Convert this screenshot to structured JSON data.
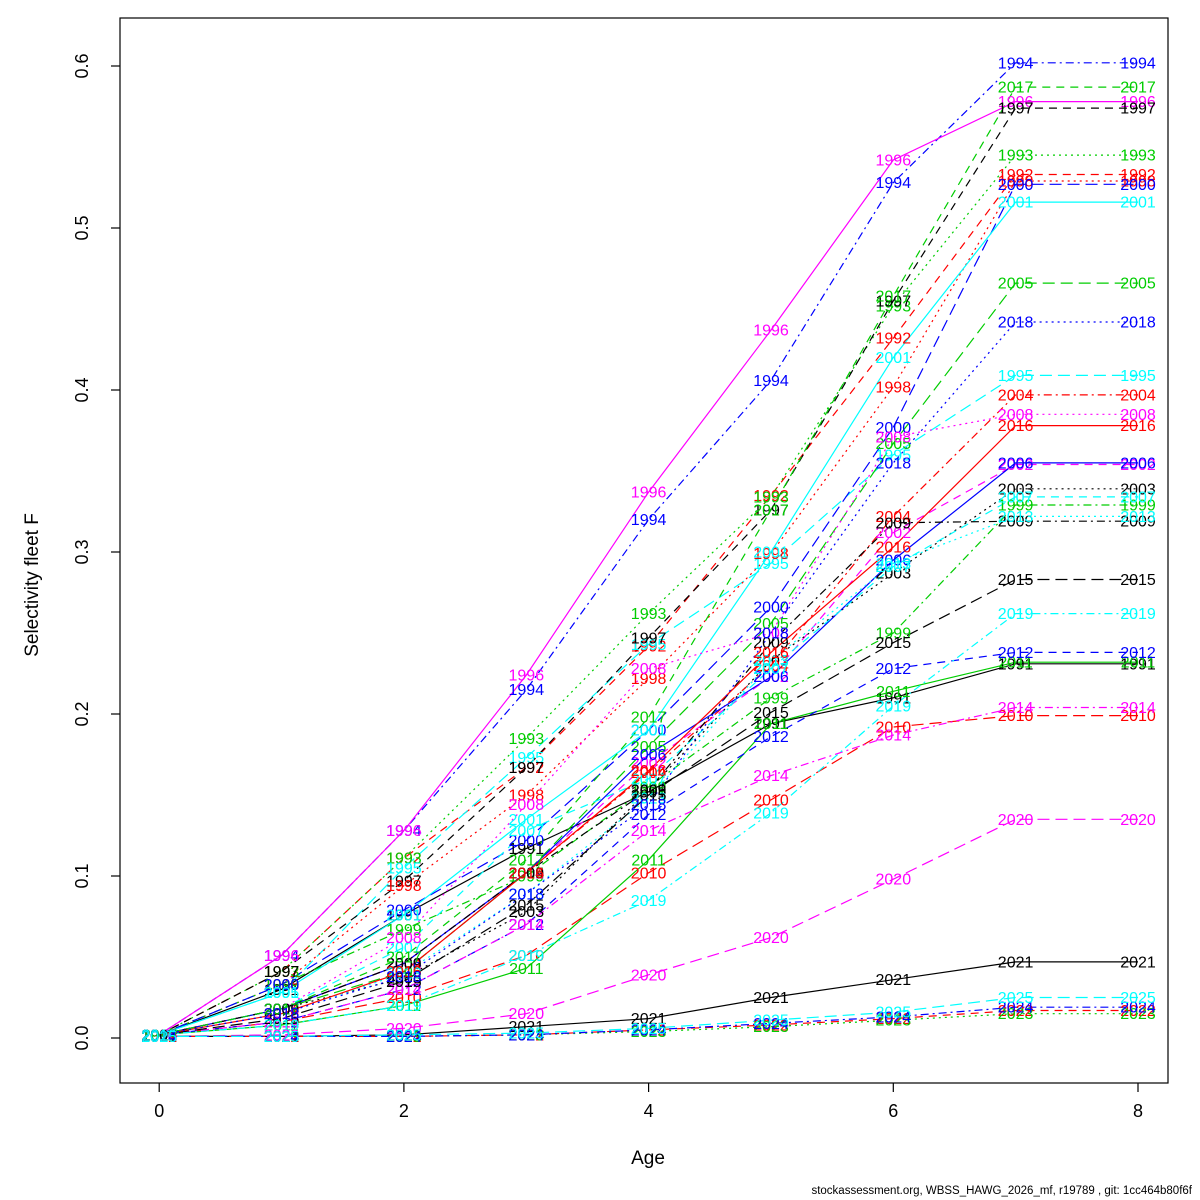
{
  "footer": {
    "text": "stockassessment.org, WBSS_HAWG_2026_mf, r19789 , git: 1cc464b80f6f"
  },
  "chart_data": {
    "type": "line",
    "title": "",
    "xlabel": "Age",
    "ylabel": "Selectivity fleet F",
    "x": [
      0,
      1,
      2,
      3,
      4,
      5,
      6,
      7,
      8
    ],
    "x_ticks": [
      0,
      2,
      4,
      6,
      8
    ],
    "y_ticks": [
      "0.0",
      "0.1",
      "0.2",
      "0.3",
      "0.4",
      "0.5",
      "0.6"
    ],
    "xlim": [
      0,
      8
    ],
    "ylim": [
      0.0,
      0.6
    ],
    "grid": false,
    "legend": "labels at every data point (year text in series color)",
    "point_label_style": "year text at each age 0-8, overlapping near origin",
    "series": [
      {
        "name": "1991",
        "color": "#000000",
        "linetype": "solid",
        "values": [
          0.002,
          0.03,
          0.076,
          0.117,
          0.152,
          0.194,
          0.21,
          0.231,
          0.231
        ]
      },
      {
        "name": "1992",
        "color": "#FF0000",
        "linetype": "dashed",
        "values": [
          0.002,
          0.041,
          0.111,
          0.167,
          0.242,
          0.335,
          0.432,
          0.533,
          0.533
        ]
      },
      {
        "name": "1993",
        "color": "#00CD00",
        "linetype": "dotted",
        "values": [
          0.002,
          0.041,
          0.111,
          0.185,
          0.262,
          0.334,
          0.452,
          0.545,
          0.545
        ]
      },
      {
        "name": "1994",
        "color": "#0000FF",
        "linetype": "dotdash",
        "values": [
          0.002,
          0.051,
          0.128,
          0.215,
          0.32,
          0.406,
          0.528,
          0.602,
          0.602
        ]
      },
      {
        "name": "1995",
        "color": "#00FFFF",
        "linetype": "longdash",
        "values": [
          0.002,
          0.028,
          0.105,
          0.173,
          0.243,
          0.293,
          0.36,
          0.409,
          0.409
        ]
      },
      {
        "name": "1996",
        "color": "#FF00FF",
        "linetype": "solid",
        "values": [
          0.002,
          0.051,
          0.128,
          0.224,
          0.337,
          0.437,
          0.542,
          0.578,
          0.578
        ]
      },
      {
        "name": "1997",
        "color": "#000000",
        "linetype": "dashed",
        "values": [
          0.002,
          0.041,
          0.097,
          0.167,
          0.247,
          0.326,
          0.455,
          0.574,
          0.574
        ]
      },
      {
        "name": "1998",
        "color": "#FF0000",
        "linetype": "dotted",
        "values": [
          0.002,
          0.033,
          0.094,
          0.15,
          0.222,
          0.299,
          0.402,
          0.529,
          0.529
        ]
      },
      {
        "name": "1999",
        "color": "#00CD00",
        "linetype": "dotdash",
        "values": [
          0.002,
          0.033,
          0.067,
          0.1,
          0.155,
          0.21,
          0.25,
          0.329,
          0.329
        ]
      },
      {
        "name": "2000",
        "color": "#0000FF",
        "linetype": "longdash",
        "values": [
          0.002,
          0.033,
          0.079,
          0.122,
          0.19,
          0.266,
          0.377,
          0.527,
          0.527
        ]
      },
      {
        "name": "2001",
        "color": "#00FFFF",
        "linetype": "solid",
        "values": [
          0.002,
          0.028,
          0.076,
          0.135,
          0.19,
          0.3,
          0.42,
          0.516,
          0.516
        ]
      },
      {
        "name": "2002",
        "color": "#FF00FF",
        "linetype": "dashed",
        "values": [
          0.002,
          0.018,
          0.046,
          0.102,
          0.17,
          0.223,
          0.312,
          0.354,
          0.354
        ]
      },
      {
        "name": "2003",
        "color": "#000000",
        "linetype": "dotted",
        "values": [
          0.002,
          0.018,
          0.037,
          0.078,
          0.153,
          0.233,
          0.287,
          0.339,
          0.339
        ]
      },
      {
        "name": "2004",
        "color": "#FF0000",
        "linetype": "dotdash",
        "values": [
          0.002,
          0.018,
          0.046,
          0.102,
          0.164,
          0.23,
          0.322,
          0.397,
          0.397
        ]
      },
      {
        "name": "2005",
        "color": "#00CD00",
        "linetype": "longdash",
        "values": [
          0.002,
          0.018,
          0.041,
          0.102,
          0.18,
          0.256,
          0.367,
          0.466,
          0.466
        ]
      },
      {
        "name": "2006",
        "color": "#0000FF",
        "linetype": "solid",
        "values": [
          0.002,
          0.018,
          0.046,
          0.102,
          0.175,
          0.223,
          0.295,
          0.355,
          0.355
        ]
      },
      {
        "name": "2007",
        "color": "#00FFFF",
        "linetype": "dashed",
        "values": [
          0.002,
          0.018,
          0.056,
          0.128,
          0.16,
          0.228,
          0.291,
          0.334,
          0.334
        ]
      },
      {
        "name": "2008",
        "color": "#FF00FF",
        "linetype": "dotted",
        "values": [
          0.002,
          0.018,
          0.062,
          0.144,
          0.228,
          0.25,
          0.371,
          0.385,
          0.385
        ]
      },
      {
        "name": "2009",
        "color": "#000000",
        "linetype": "dotdash",
        "values": [
          0.002,
          0.018,
          0.046,
          0.102,
          0.153,
          0.244,
          0.318,
          0.319,
          0.319
        ]
      },
      {
        "name": "2010",
        "color": "#FF0000",
        "linetype": "longdash",
        "values": [
          0.002,
          0.01,
          0.025,
          0.051,
          0.102,
          0.147,
          0.192,
          0.199,
          0.199
        ]
      },
      {
        "name": "2011",
        "color": "#00CD00",
        "linetype": "solid",
        "values": [
          0.002,
          0.008,
          0.02,
          0.043,
          0.11,
          0.194,
          0.214,
          0.232,
          0.232
        ]
      },
      {
        "name": "2012",
        "color": "#0000FF",
        "linetype": "dashed",
        "values": [
          0.002,
          0.01,
          0.03,
          0.07,
          0.138,
          0.186,
          0.228,
          0.238,
          0.238
        ]
      },
      {
        "name": "2013",
        "color": "#00FFFF",
        "linetype": "dotted",
        "values": [
          0.002,
          0.015,
          0.04,
          0.089,
          0.148,
          0.233,
          0.293,
          0.322,
          0.322
        ]
      },
      {
        "name": "2014",
        "color": "#FF00FF",
        "linetype": "dotdash",
        "values": [
          0.002,
          0.01,
          0.03,
          0.07,
          0.128,
          0.162,
          0.187,
          0.204,
          0.204
        ]
      },
      {
        "name": "2015",
        "color": "#000000",
        "linetype": "longdash",
        "values": [
          0.002,
          0.012,
          0.035,
          0.082,
          0.15,
          0.201,
          0.244,
          0.283,
          0.283
        ]
      },
      {
        "name": "2016",
        "color": "#FF0000",
        "linetype": "solid",
        "values": [
          0.002,
          0.015,
          0.041,
          0.102,
          0.165,
          0.238,
          0.303,
          0.378,
          0.378
        ]
      },
      {
        "name": "2017",
        "color": "#00CD00",
        "linetype": "dashed",
        "values": [
          0.002,
          0.018,
          0.05,
          0.11,
          0.198,
          0.326,
          0.458,
          0.587,
          0.587
        ]
      },
      {
        "name": "2018",
        "color": "#0000FF",
        "linetype": "dotted",
        "values": [
          0.002,
          0.015,
          0.038,
          0.089,
          0.144,
          0.25,
          0.355,
          0.442,
          0.442
        ]
      },
      {
        "name": "2019",
        "color": "#00FFFF",
        "linetype": "dotdash",
        "values": [
          0.002,
          0.008,
          0.02,
          0.051,
          0.085,
          0.139,
          0.205,
          0.262,
          0.262
        ]
      },
      {
        "name": "2020",
        "color": "#FF00FF",
        "linetype": "longdash",
        "values": [
          0.001,
          0.002,
          0.006,
          0.015,
          0.039,
          0.062,
          0.098,
          0.135,
          0.135
        ]
      },
      {
        "name": "2021",
        "color": "#000000",
        "linetype": "solid",
        "values": [
          0.001,
          0.001,
          0.002,
          0.007,
          0.012,
          0.025,
          0.036,
          0.047,
          0.047
        ]
      },
      {
        "name": "2022",
        "color": "#FF0000",
        "linetype": "dashed",
        "values": [
          0.001,
          0.001,
          0.001,
          0.002,
          0.005,
          0.008,
          0.012,
          0.017,
          0.017
        ]
      },
      {
        "name": "2023",
        "color": "#00CD00",
        "linetype": "dotted",
        "values": [
          0.001,
          0.001,
          0.001,
          0.002,
          0.004,
          0.007,
          0.011,
          0.015,
          0.015
        ]
      },
      {
        "name": "2024",
        "color": "#0000FF",
        "linetype": "dotdash",
        "values": [
          0.001,
          0.001,
          0.001,
          0.002,
          0.005,
          0.009,
          0.013,
          0.019,
          0.019
        ]
      },
      {
        "name": "2025",
        "color": "#00FFFF",
        "linetype": "longdash",
        "values": [
          0.001,
          0.001,
          0.002,
          0.003,
          0.006,
          0.011,
          0.016,
          0.025,
          0.025
        ]
      }
    ],
    "colors": {
      "black": "#000000",
      "red": "#FF0000",
      "green3": "#00CD00",
      "blue": "#0000FF",
      "cyan": "#00FFFF",
      "magenta": "#FF00FF",
      "axis": "#000000",
      "background": "#FFFFFF"
    }
  }
}
